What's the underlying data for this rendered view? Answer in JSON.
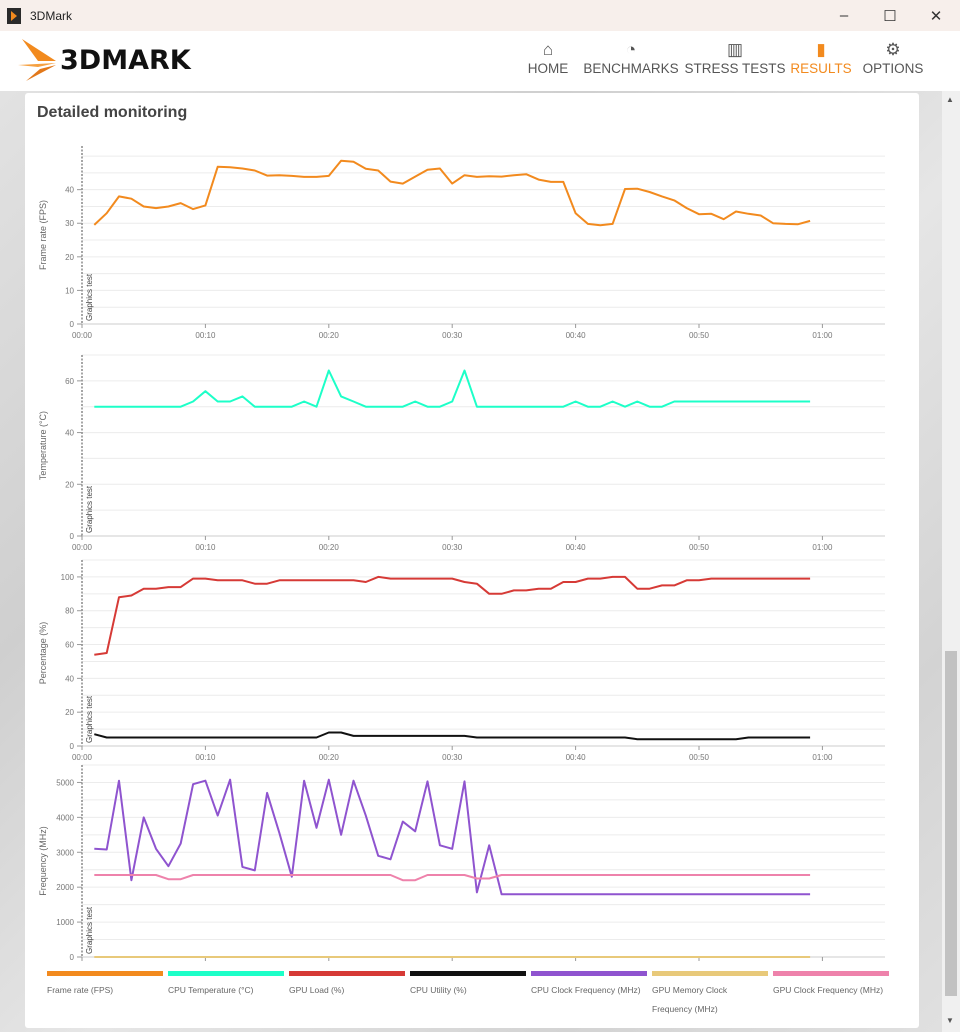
{
  "window": {
    "title": "3DMark",
    "minimize": "–",
    "maximize": "☐",
    "close": "✕"
  },
  "logo": {
    "text": "3DMARK"
  },
  "nav": [
    {
      "label": "HOME",
      "icon": "home-icon",
      "glyph": "⌂"
    },
    {
      "label": "BENCHMARKS",
      "icon": "gauge-icon",
      "glyph": "◔"
    },
    {
      "label": "STRESS TESTS",
      "icon": "bars-icon",
      "glyph": "▥"
    },
    {
      "label": "RESULTS",
      "icon": "results-icon",
      "glyph": "▮"
    },
    {
      "label": "OPTIONS",
      "icon": "gear-icon",
      "glyph": "⚙"
    }
  ],
  "active_nav": "RESULTS",
  "accent": "#f28a1e",
  "card": {
    "title": "Detailed monitoring"
  },
  "marker_label": "Graphics test",
  "x_ticks": [
    "00:00",
    "00:10",
    "00:20",
    "00:30",
    "00:40",
    "00:50",
    "01:00"
  ],
  "chart_data": [
    {
      "type": "line",
      "ylabel": "Frame rate (FPS)",
      "ylim": [
        0,
        53
      ],
      "yticks": [
        0,
        10,
        20,
        30,
        40
      ],
      "xlim": [
        0,
        65
      ],
      "series": [
        {
          "name": "Frame rate (FPS)",
          "color": "#f28a1e",
          "x_start": 1,
          "values": [
            29.5,
            33,
            38,
            37.3,
            35,
            34.5,
            35,
            36,
            34.2,
            35.3,
            46.8,
            46.7,
            46.3,
            45.7,
            44.2,
            44.3,
            44.1,
            43.8,
            43.8,
            44.1,
            48.6,
            48.3,
            46.2,
            45.7,
            42.4,
            41.8,
            43.9,
            45.9,
            46.3,
            41.8,
            44.3,
            43.8,
            44,
            43.9,
            44.3,
            44.6,
            43,
            42.3,
            42.3,
            33,
            29.8,
            29.4,
            29.8,
            40.2,
            40.3,
            39.3,
            38,
            36.8,
            34.5,
            32.7,
            32.8,
            31.2,
            33.5,
            32.8,
            32.3,
            30,
            29.8,
            29.7,
            30.7
          ]
        }
      ]
    },
    {
      "type": "line",
      "ylabel": "Temperature (°C)",
      "ylim": [
        0,
        70
      ],
      "yticks": [
        0,
        20,
        40,
        60
      ],
      "xlim": [
        0,
        65
      ],
      "series": [
        {
          "name": "CPU Temperature (°C)",
          "color": "#1dffc8",
          "x_start": 1,
          "values": [
            50,
            50,
            50,
            50,
            50,
            50,
            50,
            50,
            52,
            56,
            52,
            52,
            54,
            50,
            50,
            50,
            50,
            52,
            50,
            64,
            54,
            52,
            50,
            50,
            50,
            50,
            52,
            50,
            50,
            52,
            64,
            50,
            50,
            50,
            50,
            50,
            50,
            50,
            50,
            52,
            50,
            50,
            52,
            50,
            52,
            50,
            50,
            52,
            52,
            52,
            52,
            52,
            52,
            52,
            52,
            52,
            52,
            52,
            52
          ]
        }
      ]
    },
    {
      "type": "line",
      "ylabel": "Percentage (%)",
      "ylim": [
        0,
        110
      ],
      "yticks": [
        0,
        20,
        40,
        60,
        80,
        100
      ],
      "xlim": [
        0,
        65
      ],
      "series": [
        {
          "name": "GPU Load (%)",
          "color": "#d63a36",
          "x_start": 1,
          "values": [
            54,
            55,
            88,
            89,
            93,
            93,
            94,
            94,
            99,
            99,
            98,
            98,
            98,
            96,
            96,
            98,
            98,
            98,
            98,
            98,
            98,
            98,
            97,
            100,
            99,
            99,
            99,
            99,
            99,
            99,
            97,
            96,
            90,
            90,
            92,
            92,
            93,
            93,
            97,
            97,
            99,
            99,
            100,
            100,
            93,
            93,
            95,
            95,
            98,
            98,
            99,
            99,
            99,
            99,
            99,
            99,
            99,
            99,
            99
          ]
        },
        {
          "name": "CPU Utility (%)",
          "color": "#111111",
          "x_start": 1,
          "values": [
            7,
            5,
            5,
            5,
            5,
            5,
            5,
            5,
            5,
            5,
            5,
            5,
            5,
            5,
            5,
            5,
            5,
            5,
            5,
            8,
            8,
            6,
            6,
            6,
            6,
            6,
            6,
            6,
            6,
            6,
            6,
            5,
            5,
            5,
            5,
            5,
            5,
            5,
            5,
            5,
            5,
            5,
            5,
            5,
            4,
            4,
            4,
            4,
            4,
            4,
            4,
            4,
            4,
            5,
            5,
            5,
            5,
            5,
            5
          ]
        }
      ]
    },
    {
      "type": "line",
      "ylabel": "Frequency (MHz)",
      "ylim": [
        0,
        5500
      ],
      "yticks": [
        0,
        1000,
        2000,
        3000,
        4000,
        5000
      ],
      "xlim": [
        0,
        65
      ],
      "series": [
        {
          "name": "CPU Clock Frequency (MHz)",
          "color": "#8f54cf",
          "x_start": 1,
          "values": [
            3100,
            3080,
            5050,
            2200,
            4000,
            3100,
            2600,
            3250,
            4950,
            5050,
            4050,
            5080,
            2580,
            2480,
            4700,
            3550,
            2300,
            5050,
            3700,
            5080,
            3500,
            5050,
            4050,
            2900,
            2800,
            3880,
            3600,
            5030,
            3200,
            3100,
            5030,
            1850,
            3200,
            1800,
            1800,
            1800,
            1800,
            1800,
            1800,
            1800,
            1800,
            1800,
            1800,
            1800,
            1800,
            1800,
            1800,
            1800,
            1800,
            1800,
            1800,
            1800,
            1800,
            1800,
            1800,
            1800,
            1800,
            1800,
            1800
          ]
        },
        {
          "name": "GPU Memory Clock Frequency (MHz)",
          "color": "#e8c97a",
          "x_start": 1,
          "values": [
            0,
            0,
            0,
            0,
            0,
            0,
            0,
            0,
            0,
            0,
            0,
            0,
            0,
            0,
            0,
            0,
            0,
            0,
            0,
            0,
            0,
            0,
            0,
            0,
            0,
            0,
            0,
            0,
            0,
            0,
            0,
            0,
            0,
            0,
            0,
            0,
            0,
            0,
            0,
            0,
            0,
            0,
            0,
            0,
            0,
            0,
            0,
            0,
            0,
            0,
            0,
            0,
            0,
            0,
            0,
            0,
            0,
            0,
            0
          ]
        },
        {
          "name": "GPU Clock Frequency (MHz)",
          "color": "#ee82ab",
          "x_start": 1,
          "values": [
            2350,
            2350,
            2350,
            2350,
            2350,
            2350,
            2230,
            2230,
            2350,
            2350,
            2350,
            2350,
            2350,
            2350,
            2350,
            2350,
            2350,
            2350,
            2350,
            2350,
            2350,
            2350,
            2350,
            2350,
            2350,
            2200,
            2200,
            2350,
            2350,
            2350,
            2350,
            2250,
            2250,
            2350,
            2350,
            2350,
            2350,
            2350,
            2350,
            2350,
            2350,
            2350,
            2350,
            2350,
            2350,
            2350,
            2350,
            2350,
            2350,
            2350,
            2350,
            2350,
            2350,
            2350,
            2350,
            2350,
            2350,
            2350,
            2350
          ]
        }
      ]
    }
  ],
  "legend": [
    {
      "label": "Frame rate (FPS)",
      "color": "#f28a1e"
    },
    {
      "label": "CPU Temperature (°C)",
      "color": "#1dffc8"
    },
    {
      "label": "GPU Load (%)",
      "color": "#d63a36"
    },
    {
      "label": "CPU Utility (%)",
      "color": "#111111"
    },
    {
      "label": "CPU Clock Frequency (MHz)",
      "color": "#8f54cf"
    },
    {
      "label": "GPU Memory Clock Frequency (MHz)",
      "color": "#e8c97a"
    },
    {
      "label": "GPU Clock Frequency (MHz)",
      "color": "#ee82ab"
    }
  ]
}
